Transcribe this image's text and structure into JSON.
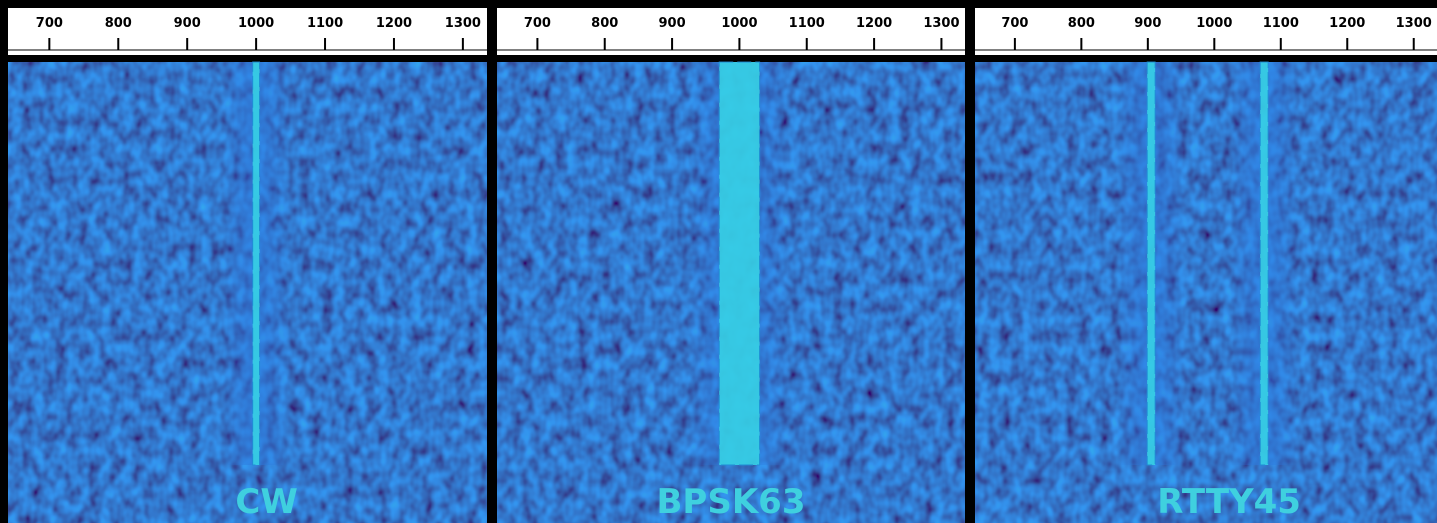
{
  "panels": [
    {
      "label": "CW",
      "range": [
        640,
        1335
      ],
      "ticks": [
        700,
        800,
        900,
        1000,
        1100,
        1200,
        1300
      ],
      "signals": [
        {
          "center": 1000,
          "width": 10
        }
      ]
    },
    {
      "label": "BPSK63",
      "range": [
        640,
        1335
      ],
      "ticks": [
        700,
        800,
        900,
        1000,
        1100,
        1200,
        1300
      ],
      "signals": [
        {
          "center": 1000,
          "width": 60
        }
      ]
    },
    {
      "label": "RTTY45",
      "range": [
        640,
        1335
      ],
      "ticks": [
        700,
        800,
        900,
        1000,
        1100,
        1200,
        1300
      ],
      "signals": [
        {
          "center": 905,
          "width": 12
        },
        {
          "center": 1075,
          "width": 12
        }
      ]
    }
  ]
}
